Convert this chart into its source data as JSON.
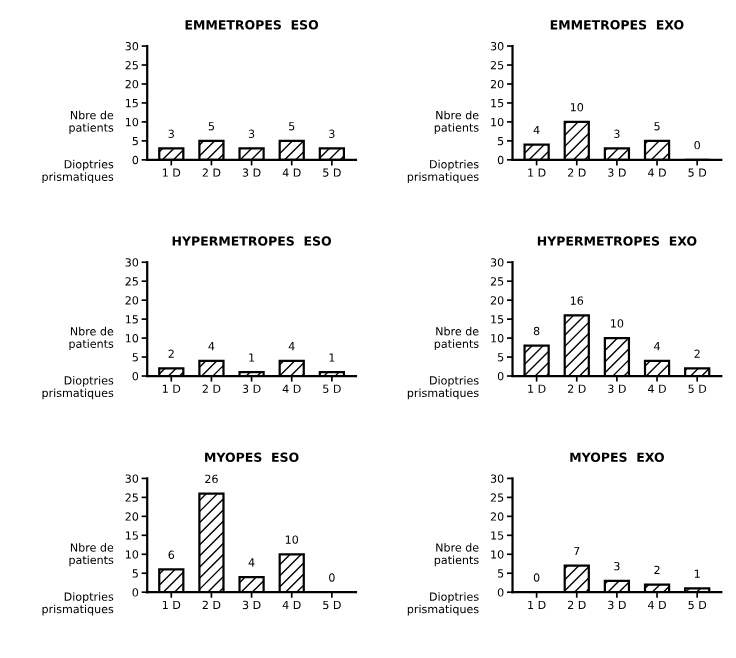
{
  "chart_data": [
    {
      "type": "bar",
      "title": "EMMETROPES  ESO",
      "ylabel": "Nbre de\npatients",
      "xlabel": "Dioptries\nprismatiques",
      "categories": [
        "1 D",
        "2 D",
        "3 D",
        "4 D",
        "5 D"
      ],
      "values": [
        3,
        5,
        3,
        5,
        3
      ],
      "color": "#000000",
      "ylim": [
        0,
        30
      ],
      "yticks": [
        0,
        5,
        10,
        15,
        20,
        25,
        30
      ],
      "data_labels": true,
      "grid": false,
      "legend": false
    },
    {
      "type": "bar",
      "title": "EMMETROPES  EXO",
      "ylabel": "Nbre de\npatients",
      "xlabel": "Dioptries\nprismatiques",
      "categories": [
        "1 D",
        "2 D",
        "3 D",
        "4 D",
        "5 D"
      ],
      "values": [
        4,
        10,
        3,
        5,
        0
      ],
      "color": "#000000",
      "ylim": [
        0,
        30
      ],
      "yticks": [
        0,
        5,
        10,
        15,
        20,
        25,
        30
      ],
      "data_labels": true,
      "grid": false,
      "legend": false
    },
    {
      "type": "bar",
      "title": "HYPERMETROPES  ESO",
      "ylabel": "Nbre de\npatients",
      "xlabel": "Dioptries\nprismatiques",
      "categories": [
        "1 D",
        "2 D",
        "3 D",
        "4 D",
        "5 D"
      ],
      "values": [
        2,
        4,
        1,
        4,
        1
      ],
      "color": "#000000",
      "ylim": [
        0,
        30
      ],
      "yticks": [
        0,
        5,
        10,
        15,
        20,
        25,
        30
      ],
      "data_labels": true,
      "grid": false,
      "legend": false
    },
    {
      "type": "bar",
      "title": "HYPERMETROPES  EXO",
      "ylabel": "Nbre de\npatients",
      "xlabel": "Dioptries\nprismatiques",
      "categories": [
        "1 D",
        "2 D",
        "3 D",
        "4 D",
        "5 D"
      ],
      "values": [
        8,
        16,
        10,
        4,
        2
      ],
      "color": "#000000",
      "ylim": [
        0,
        30
      ],
      "yticks": [
        0,
        5,
        10,
        15,
        20,
        25,
        30
      ],
      "data_labels": true,
      "grid": false,
      "legend": false
    },
    {
      "type": "bar",
      "title": "MYOPES  ESO",
      "ylabel": "Nbre de\npatients",
      "xlabel": "Dioptries\nprismatiques",
      "categories": [
        "1 D",
        "2 D",
        "3 D",
        "4 D",
        "5 D"
      ],
      "values": [
        6,
        26,
        4,
        10,
        0
      ],
      "color": "#000000",
      "ylim": [
        0,
        30
      ],
      "yticks": [
        0,
        5,
        10,
        15,
        20,
        25,
        30
      ],
      "data_labels": true,
      "grid": false,
      "legend": false
    },
    {
      "type": "bar",
      "title": "MYOPES  EXO",
      "ylabel": "Nbre de\npatients",
      "xlabel": "Dioptries\nprismatiques",
      "categories": [
        "1 D",
        "2 D",
        "3 D",
        "4 D",
        "5 D"
      ],
      "values": [
        0,
        7,
        3,
        2,
        1
      ],
      "color": "#000000",
      "ylim": [
        0,
        30
      ],
      "yticks": [
        0,
        5,
        10,
        15,
        20,
        25,
        30
      ],
      "data_labels": true,
      "grid": false,
      "legend": false
    }
  ]
}
